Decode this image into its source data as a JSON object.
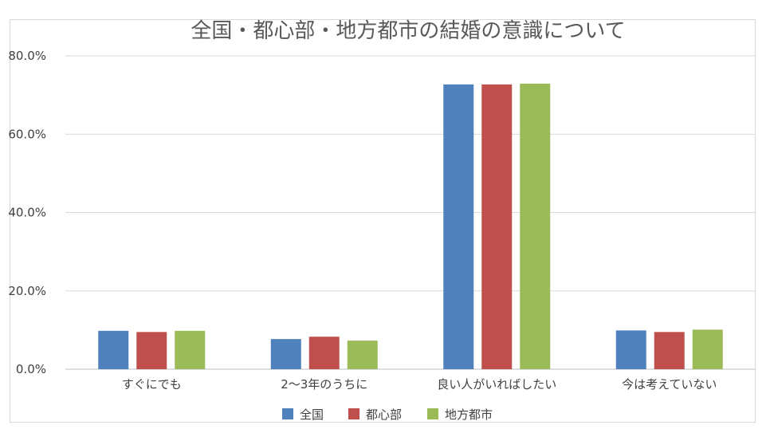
{
  "chart_data": {
    "type": "bar",
    "title": "全国・都心部・地方都市の結婚の意識について",
    "categories": [
      "すぐにでも",
      "2〜3年のうちに",
      "良い人がいればしたい",
      "今は考えていない"
    ],
    "series": [
      {
        "name": "全国",
        "color": "#4f81bd",
        "values": [
          9.8,
          7.7,
          72.7,
          9.9
        ]
      },
      {
        "name": "都心部",
        "color": "#c0504d",
        "values": [
          9.5,
          8.3,
          72.7,
          9.5
        ]
      },
      {
        "name": "地方都市",
        "color": "#9bbb59",
        "values": [
          9.8,
          7.3,
          72.9,
          10.1
        ]
      }
    ],
    "y_ticks": [
      "0.0%",
      "20.0%",
      "40.0%",
      "60.0%",
      "80.0%"
    ],
    "ylim": [
      0,
      80
    ],
    "grid": true,
    "legend_position": "bottom"
  }
}
